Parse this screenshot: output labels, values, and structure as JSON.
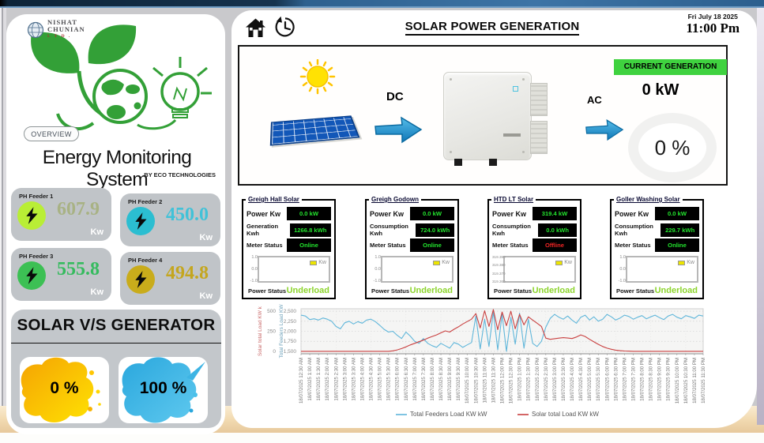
{
  "brand": {
    "line1": "NISHAT",
    "line2": "CHUNIAN",
    "line3": "L T D ."
  },
  "left": {
    "overview": "OVERVIEW",
    "title": "Energy Monitoring System",
    "subtitle": "BY ECO TECHNOLOGIES",
    "feeders": [
      {
        "name": "PH Feeder 1",
        "value": "607.9",
        "unit": "Kw",
        "circle_color": "#b9ee35",
        "value_color": "#a8b284"
      },
      {
        "name": "PH Feeder 2",
        "value": "450.0",
        "unit": "Kw",
        "circle_color": "#2bbed1",
        "value_color": "#41c2d8"
      },
      {
        "name": "PH Feeder 3",
        "value": "555.8",
        "unit": "Kw",
        "circle_color": "#3cc054",
        "value_color": "#35bb5e"
      },
      {
        "name": "PH Feeder 4",
        "value": "494.8",
        "unit": "Kw",
        "circle_color": "#c9ac1b",
        "value_color": "#c4a61f"
      }
    ],
    "solar_vs_generator": {
      "title": "SOLAR V/S GENERATOR",
      "solar_value": "0 %",
      "generator_value": "100 %"
    }
  },
  "header": {
    "title": "SOLAR POWER GENERATION",
    "date": "Fri July 18 2025",
    "time": "11:00 Pm"
  },
  "generation": {
    "dc": "DC",
    "ac": "AC",
    "banner": "CURRENT GENERATION",
    "kw": "0 kW",
    "percent": "0 %"
  },
  "site_panels": [
    {
      "title": "Greigh Hall Solar",
      "rows": [
        {
          "label": "Power Kw",
          "value": "0.0 kW",
          "value_color": "#23e52e"
        },
        {
          "label": "Generation Kwh",
          "value": "1266.8 kWh",
          "value_color": "#23e52e"
        },
        {
          "label": "Meter Status",
          "value": "Online",
          "value_color": "#23e52e"
        }
      ],
      "gauge_ticks": [
        "1.0",
        "0.0",
        "-1.0"
      ],
      "gauge_legend": "Kw",
      "power_status_label": "Power Status",
      "power_status": "Underload",
      "power_status_color": "#8cd42c"
    },
    {
      "title": "Greigh Godown",
      "rows": [
        {
          "label": "Power Kw",
          "value": "0.0 kW",
          "value_color": "#23e52e"
        },
        {
          "label": "Consumption Kwh",
          "value": "724.0 kWh",
          "value_color": "#23e52e"
        },
        {
          "label": "Meter Status",
          "value": "Online",
          "value_color": "#23e52e"
        }
      ],
      "gauge_ticks": [
        "1.0",
        "0.0",
        "-1.0"
      ],
      "gauge_legend": "Kw",
      "power_status_label": "Power Status",
      "power_status": "Underload",
      "power_status_color": "#8cd42c"
    },
    {
      "title": "HTD LT Solar",
      "rows": [
        {
          "label": "Power Kw",
          "value": "319.4 kW",
          "value_color": "#23e52e"
        },
        {
          "label": "Consumption Kwh",
          "value": "0.0 kWh",
          "value_color": "#23e52e"
        },
        {
          "label": "Meter Status",
          "value": "Offline",
          "value_color": "#f22525"
        }
      ],
      "gauge_ticks": [
        "319.390",
        "319.380",
        "319.370",
        "319.360"
      ],
      "gauge_legend": "Kw",
      "power_status_label": "Power Status",
      "power_status": "Underload",
      "power_status_color": "#8cd42c"
    },
    {
      "title": "Goller Washing Solar",
      "rows": [
        {
          "label": "Power Kw",
          "value": "0.0 kW",
          "value_color": "#23e52e"
        },
        {
          "label": "Consumption Kwh",
          "value": "229.7 kWh",
          "value_color": "#23e52e"
        },
        {
          "label": "Meter Status",
          "value": "Online",
          "value_color": "#23e52e"
        }
      ],
      "gauge_ticks": [
        "1.0",
        "0.0",
        "-1.0"
      ],
      "gauge_legend": "Kw",
      "power_status_label": "Power Status",
      "power_status": "Underload",
      "power_status_color": "#8cd42c"
    }
  ],
  "chart_data": {
    "type": "line",
    "x_tick_labels": [
      "18/07/2025 12:30 AM",
      "18/07/2025 1:00 AM",
      "18/07/2025 1:30 AM",
      "18/07/2025 2:00 AM",
      "18/07/2025 2:30 AM",
      "18/07/2025 3:00 AM",
      "18/07/2025 3:30 AM",
      "18/07/2025 4:00 AM",
      "18/07/2025 4:30 AM",
      "18/07/2025 5:00 AM",
      "18/07/2025 5:30 AM",
      "18/07/2025 6:00 AM",
      "18/07/2025 6:30 AM",
      "18/07/2025 7:00 AM",
      "18/07/2025 7:30 AM",
      "18/07/2025 8:00 AM",
      "18/07/2025 8:30 AM",
      "18/07/2025 9:00 AM",
      "18/07/2025 9:30 AM",
      "18/07/2025 10:00 AM",
      "18/07/2025 10:30 AM",
      "18/07/2025 11:00 AM",
      "18/07/2025 11:30 AM",
      "18/07/2025 12:00 PM",
      "18/07/2025 12:30 PM",
      "18/07/2025 1:00 PM",
      "18/07/2025 1:30 PM",
      "18/07/2025 2:00 PM",
      "18/07/2025 2:30 PM",
      "18/07/2025 3:00 PM",
      "18/07/2025 3:30 PM",
      "18/07/2025 4:00 PM",
      "18/07/2025 4:30 PM",
      "18/07/2025 5:00 PM",
      "18/07/2025 5:30 PM",
      "18/07/2025 6:00 PM",
      "18/07/2025 6:30 PM",
      "18/07/2025 7:00 PM",
      "18/07/2025 7:30 PM",
      "18/07/2025 8:00 PM",
      "18/07/2025 8:30 PM",
      "18/07/2025 9:00 PM",
      "18/07/2025 9:30 PM",
      "18/07/2025 10:00 PM",
      "18/07/2025 10:30 PM",
      "18/07/2025 11:00 PM",
      "18/07/2025 11:30 PM"
    ],
    "axes": {
      "red": {
        "title": "Solar total Load KW k",
        "tick_labels": [
          "0",
          "250",
          "500"
        ],
        "ticks": [
          0,
          250,
          500
        ],
        "range": [
          -30,
          530
        ],
        "color": "#c96a6a"
      },
      "blue": {
        "title": "Total Feeders Load KW",
        "tick_labels": [
          "1,500",
          "1,750",
          "2,000",
          "2,250",
          "2,500"
        ],
        "ticks": [
          1500,
          1750,
          2000,
          2250,
          2500
        ],
        "range": [
          1440,
          2560
        ],
        "color": "#6b9fb8"
      }
    },
    "series": [
      {
        "name": "Total Feeders Load KW kW",
        "color": "#5fb6da",
        "axis": "blue",
        "values": [
          2400,
          2380,
          2290,
          2310,
          2280,
          2330,
          2300,
          2250,
          2120,
          2060,
          2210,
          2250,
          2180,
          2240,
          2200,
          2280,
          2300,
          2240,
          2150,
          2050,
          1980,
          2000,
          1900,
          1820,
          1980,
          1880,
          1750,
          1700,
          1820,
          1700,
          1640,
          1600,
          1700,
          1640,
          1580,
          1720,
          1680,
          1600,
          1660,
          1720,
          2380,
          1560,
          2300,
          1620,
          2480,
          1540,
          2420,
          1500,
          2350,
          1680,
          2450,
          1580,
          2300,
          1700,
          1620,
          1750,
          2100,
          2320,
          2420,
          2350,
          2300,
          2380,
          2280,
          2200,
          2350,
          2400,
          2280,
          2360,
          2250,
          2300,
          2420,
          2360,
          2280,
          2330,
          2400,
          2370,
          2300,
          2350,
          2390,
          2310,
          2360,
          2400,
          2340,
          2290,
          2380,
          2420,
          2350,
          2310,
          2390,
          2360,
          2320,
          2400,
          2380
        ]
      },
      {
        "name": "Solar total Load KW kW",
        "color": "#c94040",
        "axis": "red",
        "values": [
          0,
          0,
          0,
          0,
          0,
          0,
          0,
          0,
          0,
          0,
          0,
          0,
          0,
          0,
          0,
          0,
          0,
          0,
          0,
          0,
          0,
          6,
          18,
          35,
          55,
          80,
          100,
          120,
          140,
          165,
          185,
          205,
          230,
          255,
          240,
          275,
          305,
          340,
          370,
          400,
          470,
          290,
          505,
          310,
          520,
          270,
          490,
          320,
          500,
          280,
          460,
          330,
          430,
          390,
          350,
          310,
          165,
          150,
          158,
          165,
          170,
          166,
          160,
          178,
          205,
          185,
          150,
          118,
          88,
          60,
          40,
          26,
          15,
          8,
          4,
          2,
          0,
          0,
          0,
          0,
          0,
          0,
          0,
          0,
          0,
          0,
          0,
          0,
          0,
          0,
          0,
          0,
          0
        ]
      }
    ],
    "legend": [
      "Total Feeders Load KW kW",
      "Solar total Load KW kW"
    ],
    "grid": true,
    "legend_position": "bottom"
  }
}
